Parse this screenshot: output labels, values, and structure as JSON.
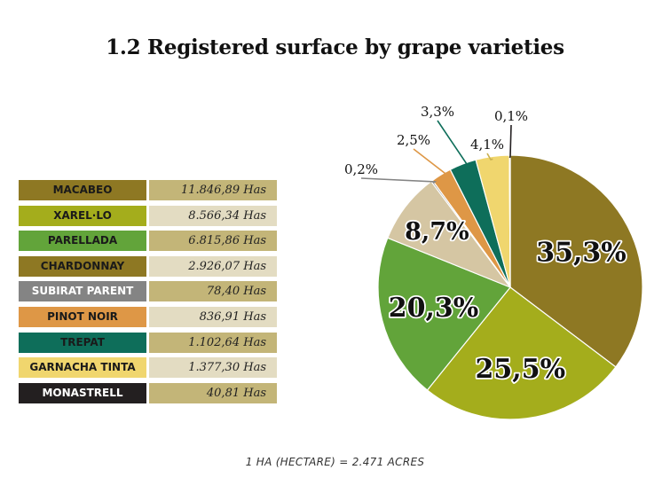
{
  "title": "1.2 Registered surface by grape varieties",
  "footnote": "1 HA (HECTARE) = 2.471 ACRES",
  "table": {
    "rows": [
      {
        "name": "MACABEO",
        "value": "11.846,89 Has",
        "color": "#8e7823",
        "text_color": "#1a1a1a",
        "value_bg": "#c3b578"
      },
      {
        "name": "XAREL·LO",
        "value": "8.566,34 Has",
        "color": "#a4ad1c",
        "text_color": "#1a1a1a",
        "value_bg": "#e3dcc2"
      },
      {
        "name": "PARELLADA",
        "value": "6.815,86 Has",
        "color": "#62a43a",
        "text_color": "#1a1a1a",
        "value_bg": "#c3b578"
      },
      {
        "name": "CHARDONNAY",
        "value": "2.926,07 Has",
        "color": "#8e7823",
        "text_color": "#1a1a1a",
        "value_bg": "#e3dcc2"
      },
      {
        "name": "SUBIRAT PARENT",
        "value": "78,40 Has",
        "color": "#848484",
        "text_color": "#ffffff",
        "value_bg": "#c3b578"
      },
      {
        "name": "PINOT NOIR",
        "value": "836,91 Has",
        "color": "#de9746",
        "text_color": "#1a1a1a",
        "value_bg": "#e3dcc2"
      },
      {
        "name": "TREPAT",
        "value": "1.102,64 Has",
        "color": "#0e6e5a",
        "text_color": "#1a1a1a",
        "value_bg": "#c3b578"
      },
      {
        "name": "GARNACHA TINTA",
        "value": "1.377,30 Has",
        "color": "#f0d66e",
        "text_color": "#1a1a1a",
        "value_bg": "#e3dcc2"
      },
      {
        "name": "MONASTRELL",
        "value": "40,81 Has",
        "color": "#231f20",
        "text_color": "#ffffff",
        "value_bg": "#c3b578"
      }
    ]
  },
  "chart_data": {
    "type": "pie",
    "title": "",
    "slices": [
      {
        "label": "35,3%",
        "value": 35.3,
        "color": "#8e7823",
        "label_style": "inside"
      },
      {
        "label": "25,5%",
        "value": 25.5,
        "color": "#a4ad1c",
        "label_style": "inside"
      },
      {
        "label": "20,3%",
        "value": 20.3,
        "color": "#62a43a",
        "label_style": "inside"
      },
      {
        "label": "8,7%",
        "value": 8.7,
        "color": "#d5c6a3",
        "label_style": "inside"
      },
      {
        "label": "0,2%",
        "value": 0.2,
        "color": "#848484",
        "label_style": "outside"
      },
      {
        "label": "2,5%",
        "value": 2.5,
        "color": "#de9746",
        "label_style": "outside"
      },
      {
        "label": "3,3%",
        "value": 3.3,
        "color": "#0e6e5a",
        "label_style": "outside"
      },
      {
        "label": "4,1%",
        "value": 4.1,
        "color": "#f0d66e",
        "label_style": "outside"
      },
      {
        "label": "0,1%",
        "value": 0.1,
        "color": "#231f20",
        "label_style": "outside"
      }
    ]
  }
}
